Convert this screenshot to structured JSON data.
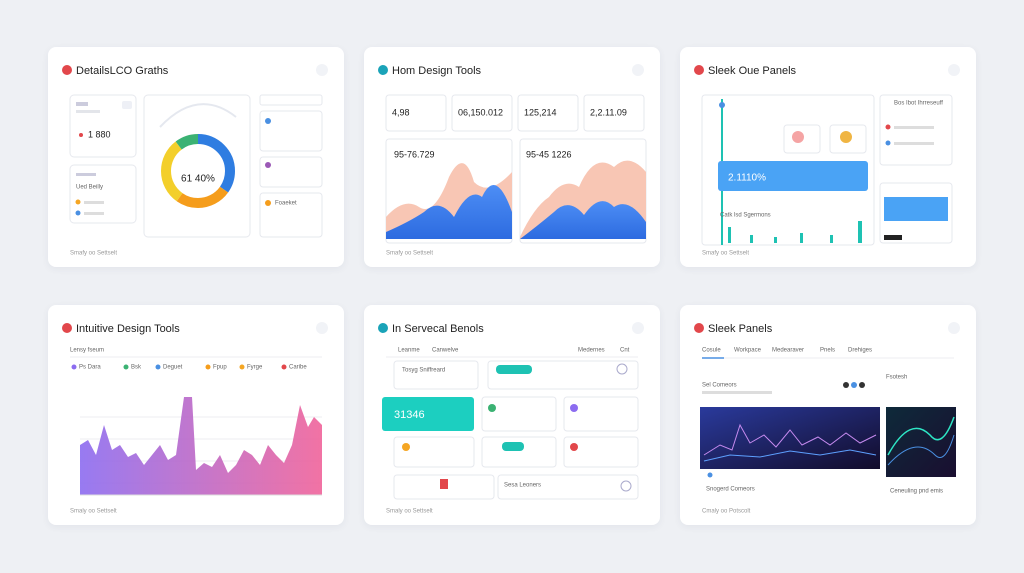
{
  "cards": [
    {
      "title": "DetailsLCO Graths",
      "footer": "Smafy oo Settselt",
      "labels": [
        "1 880",
        "61 40%",
        "Ued Beilly",
        "Foaeket"
      ]
    },
    {
      "title": "Hom Design Tools",
      "footer": "Smafy oo Settselt",
      "stats": [
        "4,98",
        "06,150.012",
        "125,214",
        "2,2.11.09"
      ],
      "labels": [
        "95-76.729",
        "95-45 1226"
      ]
    },
    {
      "title": "Sleek Oue Panels",
      "footer": "Smafy oo Settselt",
      "labels": [
        "2.1110%",
        "Catk lsd Sgermons",
        "Bos Ibot Ihrreseuff"
      ]
    },
    {
      "title": "Intuitive Design Tools",
      "footer": "Smaly oo Settselt",
      "legend": [
        "Ps Dara",
        "Bsk",
        "Deguet",
        "Fpup",
        "Fyrge",
        "Caribe"
      ],
      "labels": [
        "Lensy fseum"
      ]
    },
    {
      "title": "In Servecal Benols",
      "footer": "Smaly oo Settselt",
      "labels": [
        "Leanme",
        "Canwelve",
        "Medernes",
        "Cnt",
        "31346",
        "Tosyg Sniffreard",
        "Sesa Leoners"
      ]
    },
    {
      "title": "Sleek Panels",
      "footer": "Cmaly oo Potscolt",
      "tabs": [
        "Cosule",
        "Workpace",
        "Medearaver",
        "Pnels",
        "Drehiges"
      ],
      "labels": [
        "Sel Comeors",
        "Snogerd Comeors",
        "Fsotesh",
        "Ceneuling pnd emis"
      ]
    }
  ]
}
